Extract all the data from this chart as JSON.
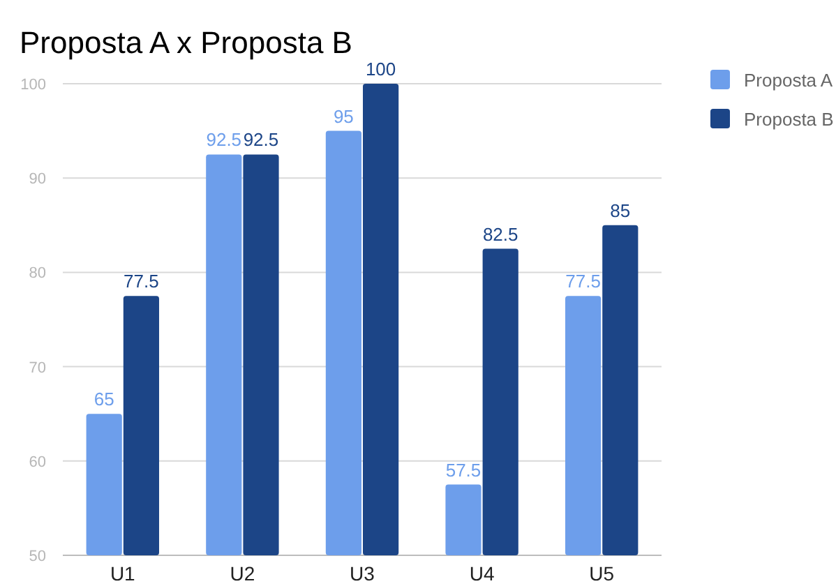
{
  "chart_data": {
    "type": "bar",
    "title": "Proposta A x Proposta B",
    "categories": [
      "U1",
      "U2",
      "U3",
      "U4",
      "U5"
    ],
    "series": [
      {
        "name": "Proposta A",
        "color": "#6d9eeb",
        "values": [
          65,
          92.5,
          95,
          57.5,
          77.5
        ]
      },
      {
        "name": "Proposta B",
        "color": "#1c4587",
        "values": [
          77.5,
          92.5,
          100,
          82.5,
          85
        ]
      }
    ],
    "ylim": [
      50,
      100
    ],
    "yticks": [
      50,
      60,
      70,
      80,
      90,
      100
    ],
    "grid": "y",
    "legend": "top right",
    "data_labels": true
  }
}
